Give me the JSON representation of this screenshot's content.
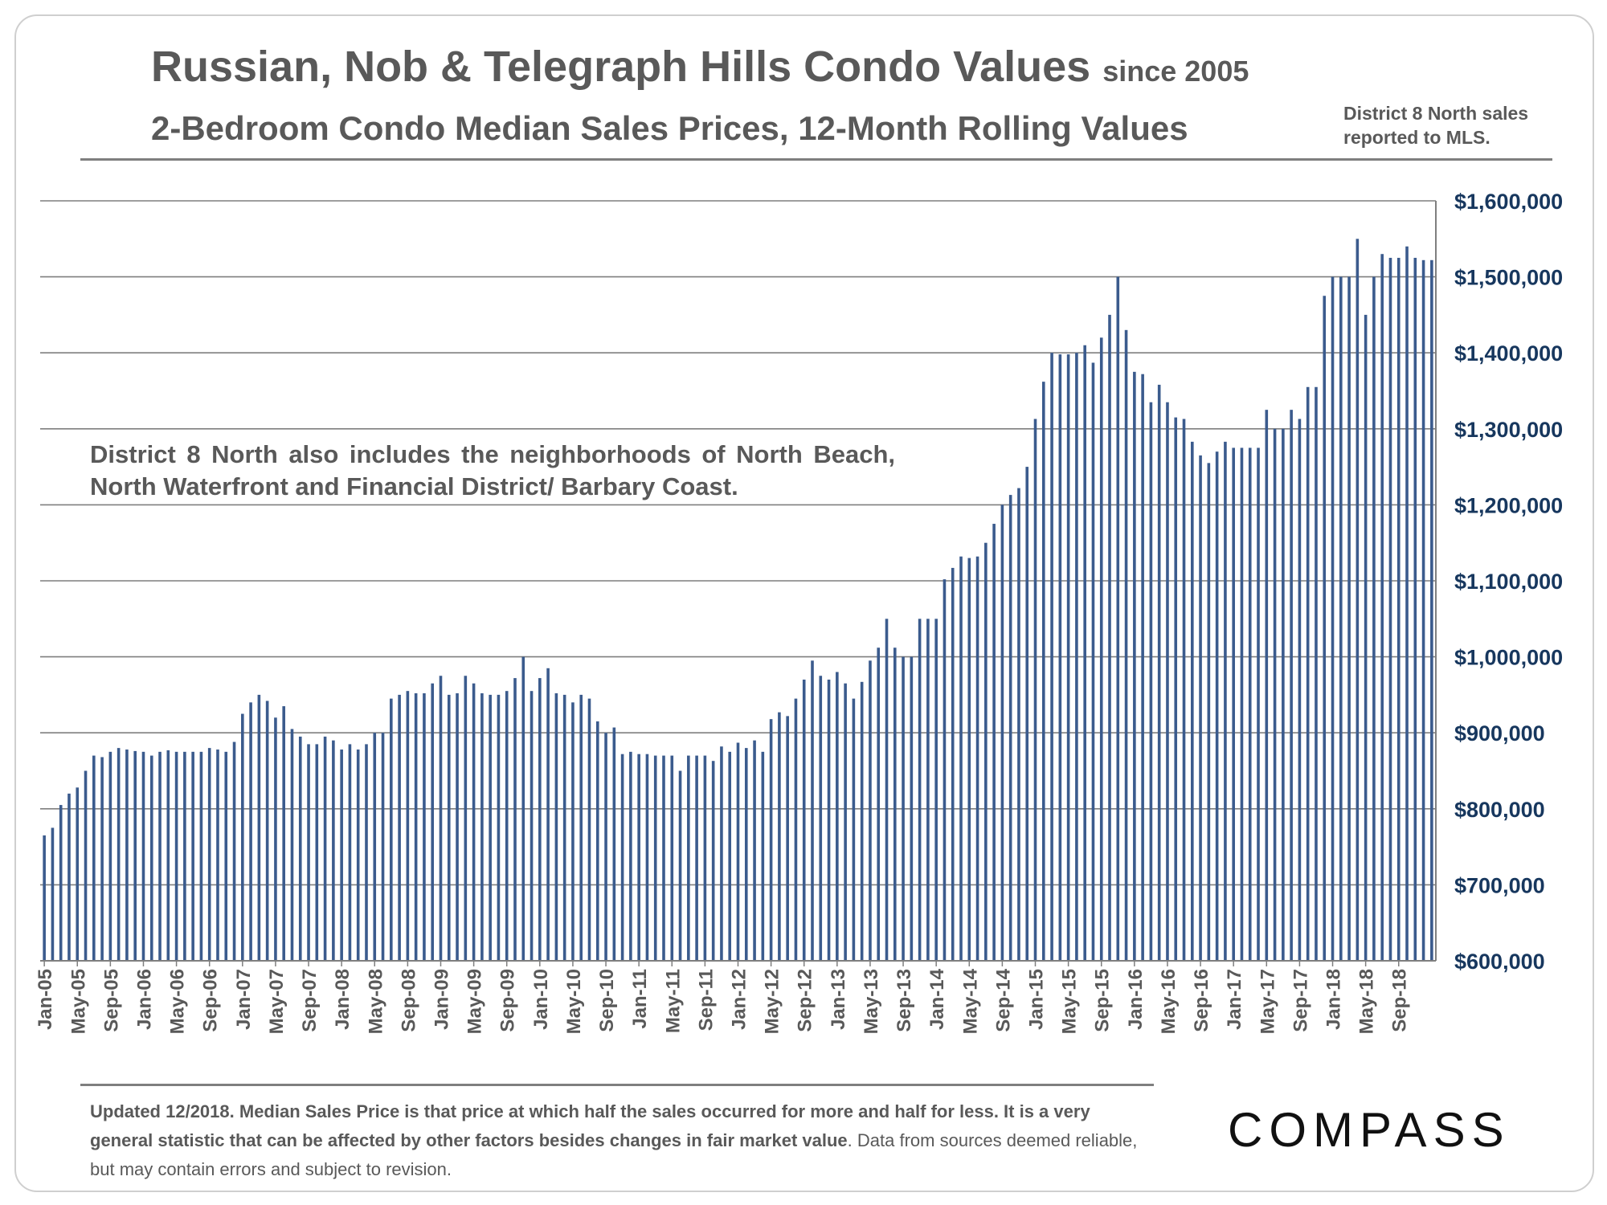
{
  "header": {
    "title_main": "Russian, Nob & Telegraph Hills Condo Values",
    "title_since": "since 2005",
    "subtitle": "2-Bedroom Condo Median Sales Prices, 12-Month Rolling Values",
    "source_note": "District 8 North sales reported to MLS."
  },
  "annotation": "District 8 North also includes the neighborhoods of North Beach, North Waterfront and Financial District/ Barbary Coast.",
  "footer": {
    "note_bold": "Updated 12/2018. Median Sales Price is that price at which half the sales occurred for more and half for less. It is a very general statistic that can be affected by other factors besides changes in fair market value",
    "note_normal": ". Data from sources deemed reliable, but may contain errors and subject to revision."
  },
  "logo": {
    "text": "COMPASS"
  },
  "colors": {
    "bar": "#3b5b8d",
    "gridline": "#7f7f7f",
    "text": "#595959",
    "axis_label": "#17375e"
  },
  "chart_data": {
    "type": "bar",
    "title": "Russian, Nob & Telegraph Hills Condo Values since 2005",
    "subtitle": "2-Bedroom Condo Median Sales Prices, 12-Month Rolling Values",
    "xlabel": "",
    "ylabel": "",
    "ylim": [
      600000,
      1600000
    ],
    "y_ticks": [
      600000,
      700000,
      800000,
      900000,
      1000000,
      1100000,
      1200000,
      1300000,
      1400000,
      1500000,
      1600000
    ],
    "y_tick_labels": [
      "$600,000",
      "$700,000",
      "$800,000",
      "$900,000",
      "$1,000,000",
      "$1,100,000",
      "$1,200,000",
      "$1,300,000",
      "$1,400,000",
      "$1,500,000",
      "$1,600,000"
    ],
    "x_tick_labels": [
      "Jan-05",
      "May-05",
      "Sep-05",
      "Jan-06",
      "May-06",
      "Sep-06",
      "Jan-07",
      "May-07",
      "Sep-07",
      "Jan-08",
      "May-08",
      "Sep-08",
      "Jan-09",
      "May-09",
      "Sep-09",
      "Jan-10",
      "May-10",
      "Sep-10",
      "Jan-11",
      "May-11",
      "Sep-11",
      "Jan-12",
      "May-12",
      "Sep-12",
      "Jan-13",
      "May-13",
      "Sep-13",
      "Jan-14",
      "May-14",
      "Sep-14",
      "Jan-15",
      "May-15",
      "Sep-15",
      "Jan-16",
      "May-16",
      "Sep-16",
      "Jan-17",
      "May-17",
      "Sep-17",
      "Jan-18",
      "May-18",
      "Sep-18"
    ],
    "grid": true,
    "legend": "none",
    "series": [
      {
        "name": "2-Bedroom Condo Median Sales Price (12-month rolling)",
        "values": [
          765000,
          775000,
          805000,
          820000,
          828000,
          850000,
          870000,
          868000,
          875000,
          880000,
          878000,
          876000,
          875000,
          870000,
          875000,
          877000,
          875000,
          875000,
          875000,
          875000,
          880000,
          878000,
          875000,
          888000,
          925000,
          940000,
          950000,
          942000,
          920000,
          935000,
          905000,
          895000,
          885000,
          885000,
          895000,
          890000,
          878000,
          885000,
          878000,
          885000,
          900000,
          900000,
          945000,
          950000,
          955000,
          952000,
          952000,
          965000,
          975000,
          950000,
          952000,
          975000,
          965000,
          952000,
          950000,
          950000,
          955000,
          972000,
          1000000,
          955000,
          972000,
          985000,
          952000,
          950000,
          940000,
          950000,
          945000,
          915000,
          900000,
          907000,
          872000,
          875000,
          872000,
          872000,
          870000,
          870000,
          870000,
          850000,
          870000,
          870000,
          870000,
          863000,
          882000,
          875000,
          887000,
          880000,
          890000,
          875000,
          918000,
          927000,
          922000,
          945000,
          970000,
          995000,
          975000,
          970000,
          980000,
          965000,
          945000,
          967000,
          995000,
          1012000,
          1050000,
          1012000,
          1000000,
          1000000,
          1050000,
          1050000,
          1050000,
          1102000,
          1117000,
          1132000,
          1130000,
          1132000,
          1150000,
          1175000,
          1200000,
          1213000,
          1222000,
          1250000,
          1313000,
          1362000,
          1400000,
          1398000,
          1398000,
          1400000,
          1410000,
          1387000,
          1420000,
          1450000,
          1500000,
          1430000,
          1375000,
          1372000,
          1335000,
          1358000,
          1335000,
          1315000,
          1313000,
          1283000,
          1265000,
          1255000,
          1270000,
          1283000,
          1275000,
          1275000,
          1275000,
          1275000,
          1325000,
          1300000,
          1300000,
          1325000,
          1313000,
          1355000,
          1355000,
          1475000,
          1500000,
          1500000,
          1500000,
          1550000,
          1450000,
          1500000,
          1530000,
          1525000,
          1525000,
          1540000,
          1525000,
          1522000,
          1522000
        ]
      }
    ]
  }
}
